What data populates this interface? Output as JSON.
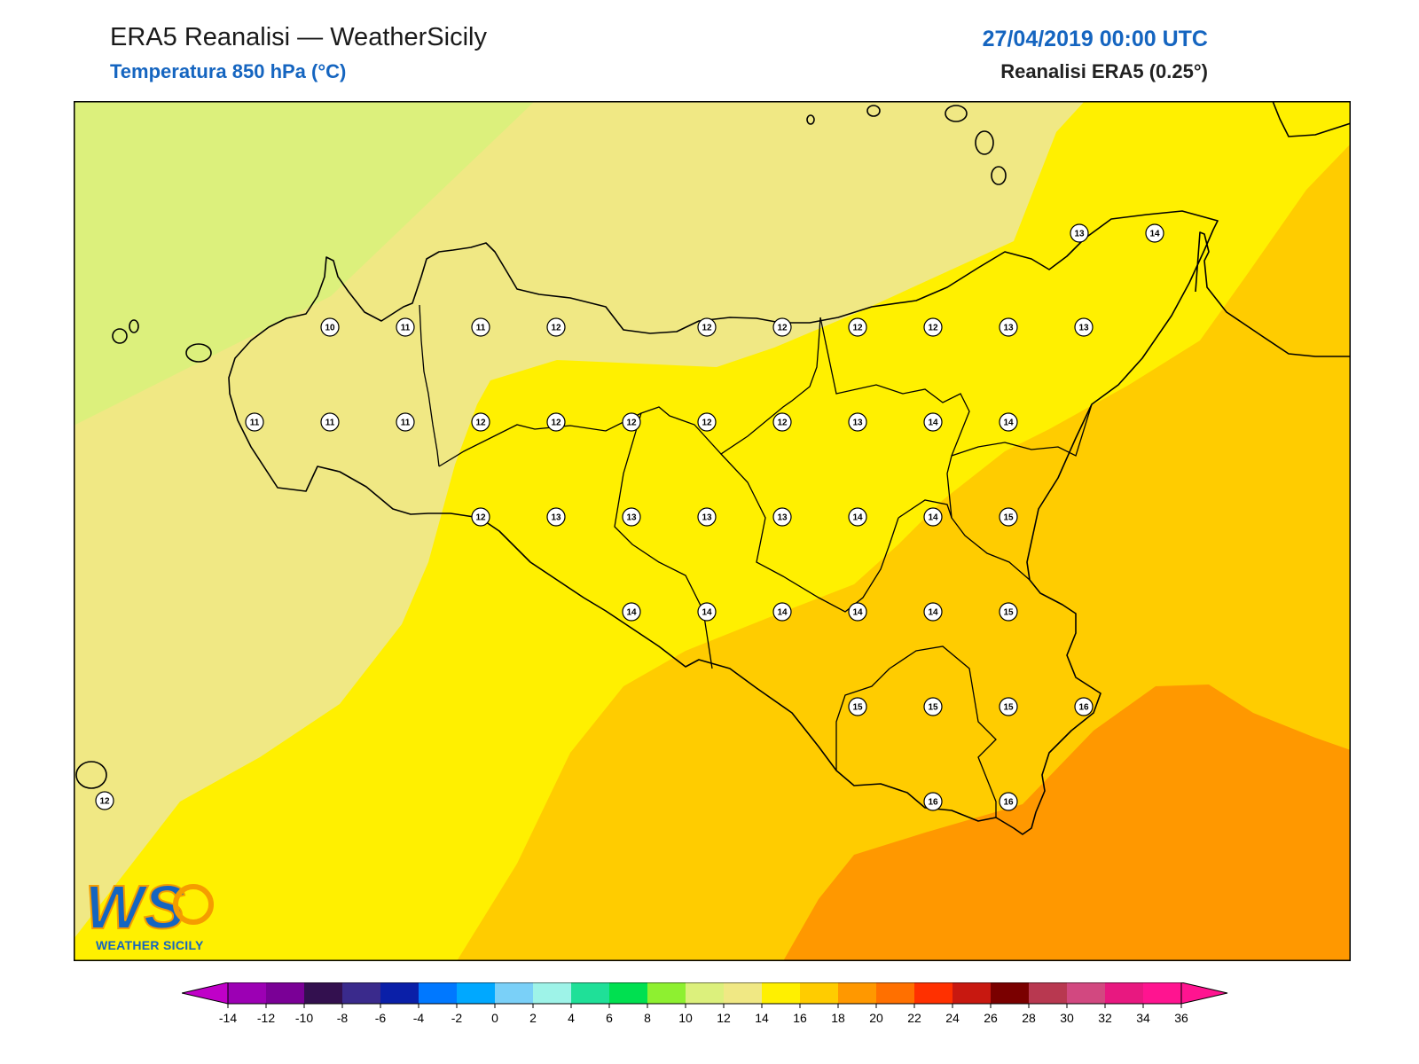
{
  "header": {
    "title": "ERA5 Reanalisi — WeatherSicily",
    "subtitle": "Temperatura 850 hPa (°C)",
    "datetime": "27/04/2019 00:00 UTC",
    "source": "Reanalisi ERA5 (0.25°)"
  },
  "logo": {
    "initials": "WS",
    "name": "WEATHER SICILY",
    "colors": {
      "blue": "#1565c0",
      "orange": "#f59c00"
    }
  },
  "colorbar": {
    "ticks": [
      "-14",
      "-12",
      "-10",
      "-8",
      "-6",
      "-4",
      "-2",
      "0",
      "2",
      "4",
      "6",
      "8",
      "10",
      "12",
      "14",
      "16",
      "18",
      "20",
      "22",
      "24",
      "26",
      "28",
      "30",
      "32",
      "34",
      "36"
    ],
    "colors": [
      "#c000c8",
      "#9c00b4",
      "#7a0096",
      "#33104f",
      "#3a2a8c",
      "#0a1fa8",
      "#0078ff",
      "#00a8ff",
      "#7ad0f8",
      "#9ef3e8",
      "#1fe098",
      "#00e050",
      "#8ef030",
      "#dcf07c",
      "#f0e884",
      "#fff000",
      "#ffcc00",
      "#ff9800",
      "#ff7000",
      "#ff3000",
      "#c81810",
      "#7a0000",
      "#b83850",
      "#d24880",
      "#e81880",
      "#ff1490"
    ],
    "left_arrow_color": "#c000c8",
    "right_arrow_color": "#ff1490"
  },
  "map": {
    "fill_colors": {
      "t8_10": "#dcf07c",
      "t10_12": "#f0e884",
      "t12_14": "#fff000",
      "t14_16": "#ffcc00",
      "t16_18": "#ff9800"
    },
    "stations": [
      {
        "value": "10",
        "col": 3,
        "row": 0
      },
      {
        "value": "11",
        "col": 4,
        "row": 0
      },
      {
        "value": "11",
        "col": 5,
        "row": 0
      },
      {
        "value": "12",
        "col": 6,
        "row": 0
      },
      {
        "value": "12",
        "col": 8,
        "row": 0
      },
      {
        "value": "12",
        "col": 9,
        "row": 0
      },
      {
        "value": "12",
        "col": 10,
        "row": 0
      },
      {
        "value": "12",
        "col": 11,
        "row": 0
      },
      {
        "value": "13",
        "col": 12,
        "row": 0
      },
      {
        "value": "13",
        "col": 13,
        "row": 0
      },
      {
        "value": "11",
        "col": 2,
        "row": 1
      },
      {
        "value": "11",
        "col": 3,
        "row": 1
      },
      {
        "value": "11",
        "col": 4,
        "row": 1
      },
      {
        "value": "12",
        "col": 5,
        "row": 1
      },
      {
        "value": "12",
        "col": 6,
        "row": 1
      },
      {
        "value": "12",
        "col": 7,
        "row": 1
      },
      {
        "value": "12",
        "col": 8,
        "row": 1
      },
      {
        "value": "12",
        "col": 9,
        "row": 1
      },
      {
        "value": "13",
        "col": 10,
        "row": 1
      },
      {
        "value": "14",
        "col": 11,
        "row": 1
      },
      {
        "value": "14",
        "col": 12,
        "row": 1
      },
      {
        "value": "12",
        "col": 5,
        "row": 2
      },
      {
        "value": "13",
        "col": 6,
        "row": 2
      },
      {
        "value": "13",
        "col": 7,
        "row": 2
      },
      {
        "value": "13",
        "col": 8,
        "row": 2
      },
      {
        "value": "13",
        "col": 9,
        "row": 2
      },
      {
        "value": "14",
        "col": 10,
        "row": 2
      },
      {
        "value": "14",
        "col": 11,
        "row": 2
      },
      {
        "value": "15",
        "col": 12,
        "row": 2
      },
      {
        "value": "14",
        "col": 7,
        "row": 3
      },
      {
        "value": "14",
        "col": 8,
        "row": 3
      },
      {
        "value": "14",
        "col": 9,
        "row": 3
      },
      {
        "value": "14",
        "col": 10,
        "row": 3
      },
      {
        "value": "14",
        "col": 11,
        "row": 3
      },
      {
        "value": "15",
        "col": 12,
        "row": 3
      },
      {
        "value": "15",
        "col": 10,
        "row": 4
      },
      {
        "value": "15",
        "col": 11,
        "row": 4
      },
      {
        "value": "15",
        "col": 12,
        "row": 4
      },
      {
        "value": "16",
        "col": 13,
        "row": 4
      },
      {
        "value": "16",
        "col": 11,
        "row": 5
      },
      {
        "value": "16",
        "col": 12,
        "row": 5
      },
      {
        "value": "13",
        "col": 13,
        "row": -1
      },
      {
        "value": "14",
        "col": 14,
        "row": -1
      },
      {
        "value": "12",
        "col": 0,
        "row": 5
      }
    ]
  }
}
